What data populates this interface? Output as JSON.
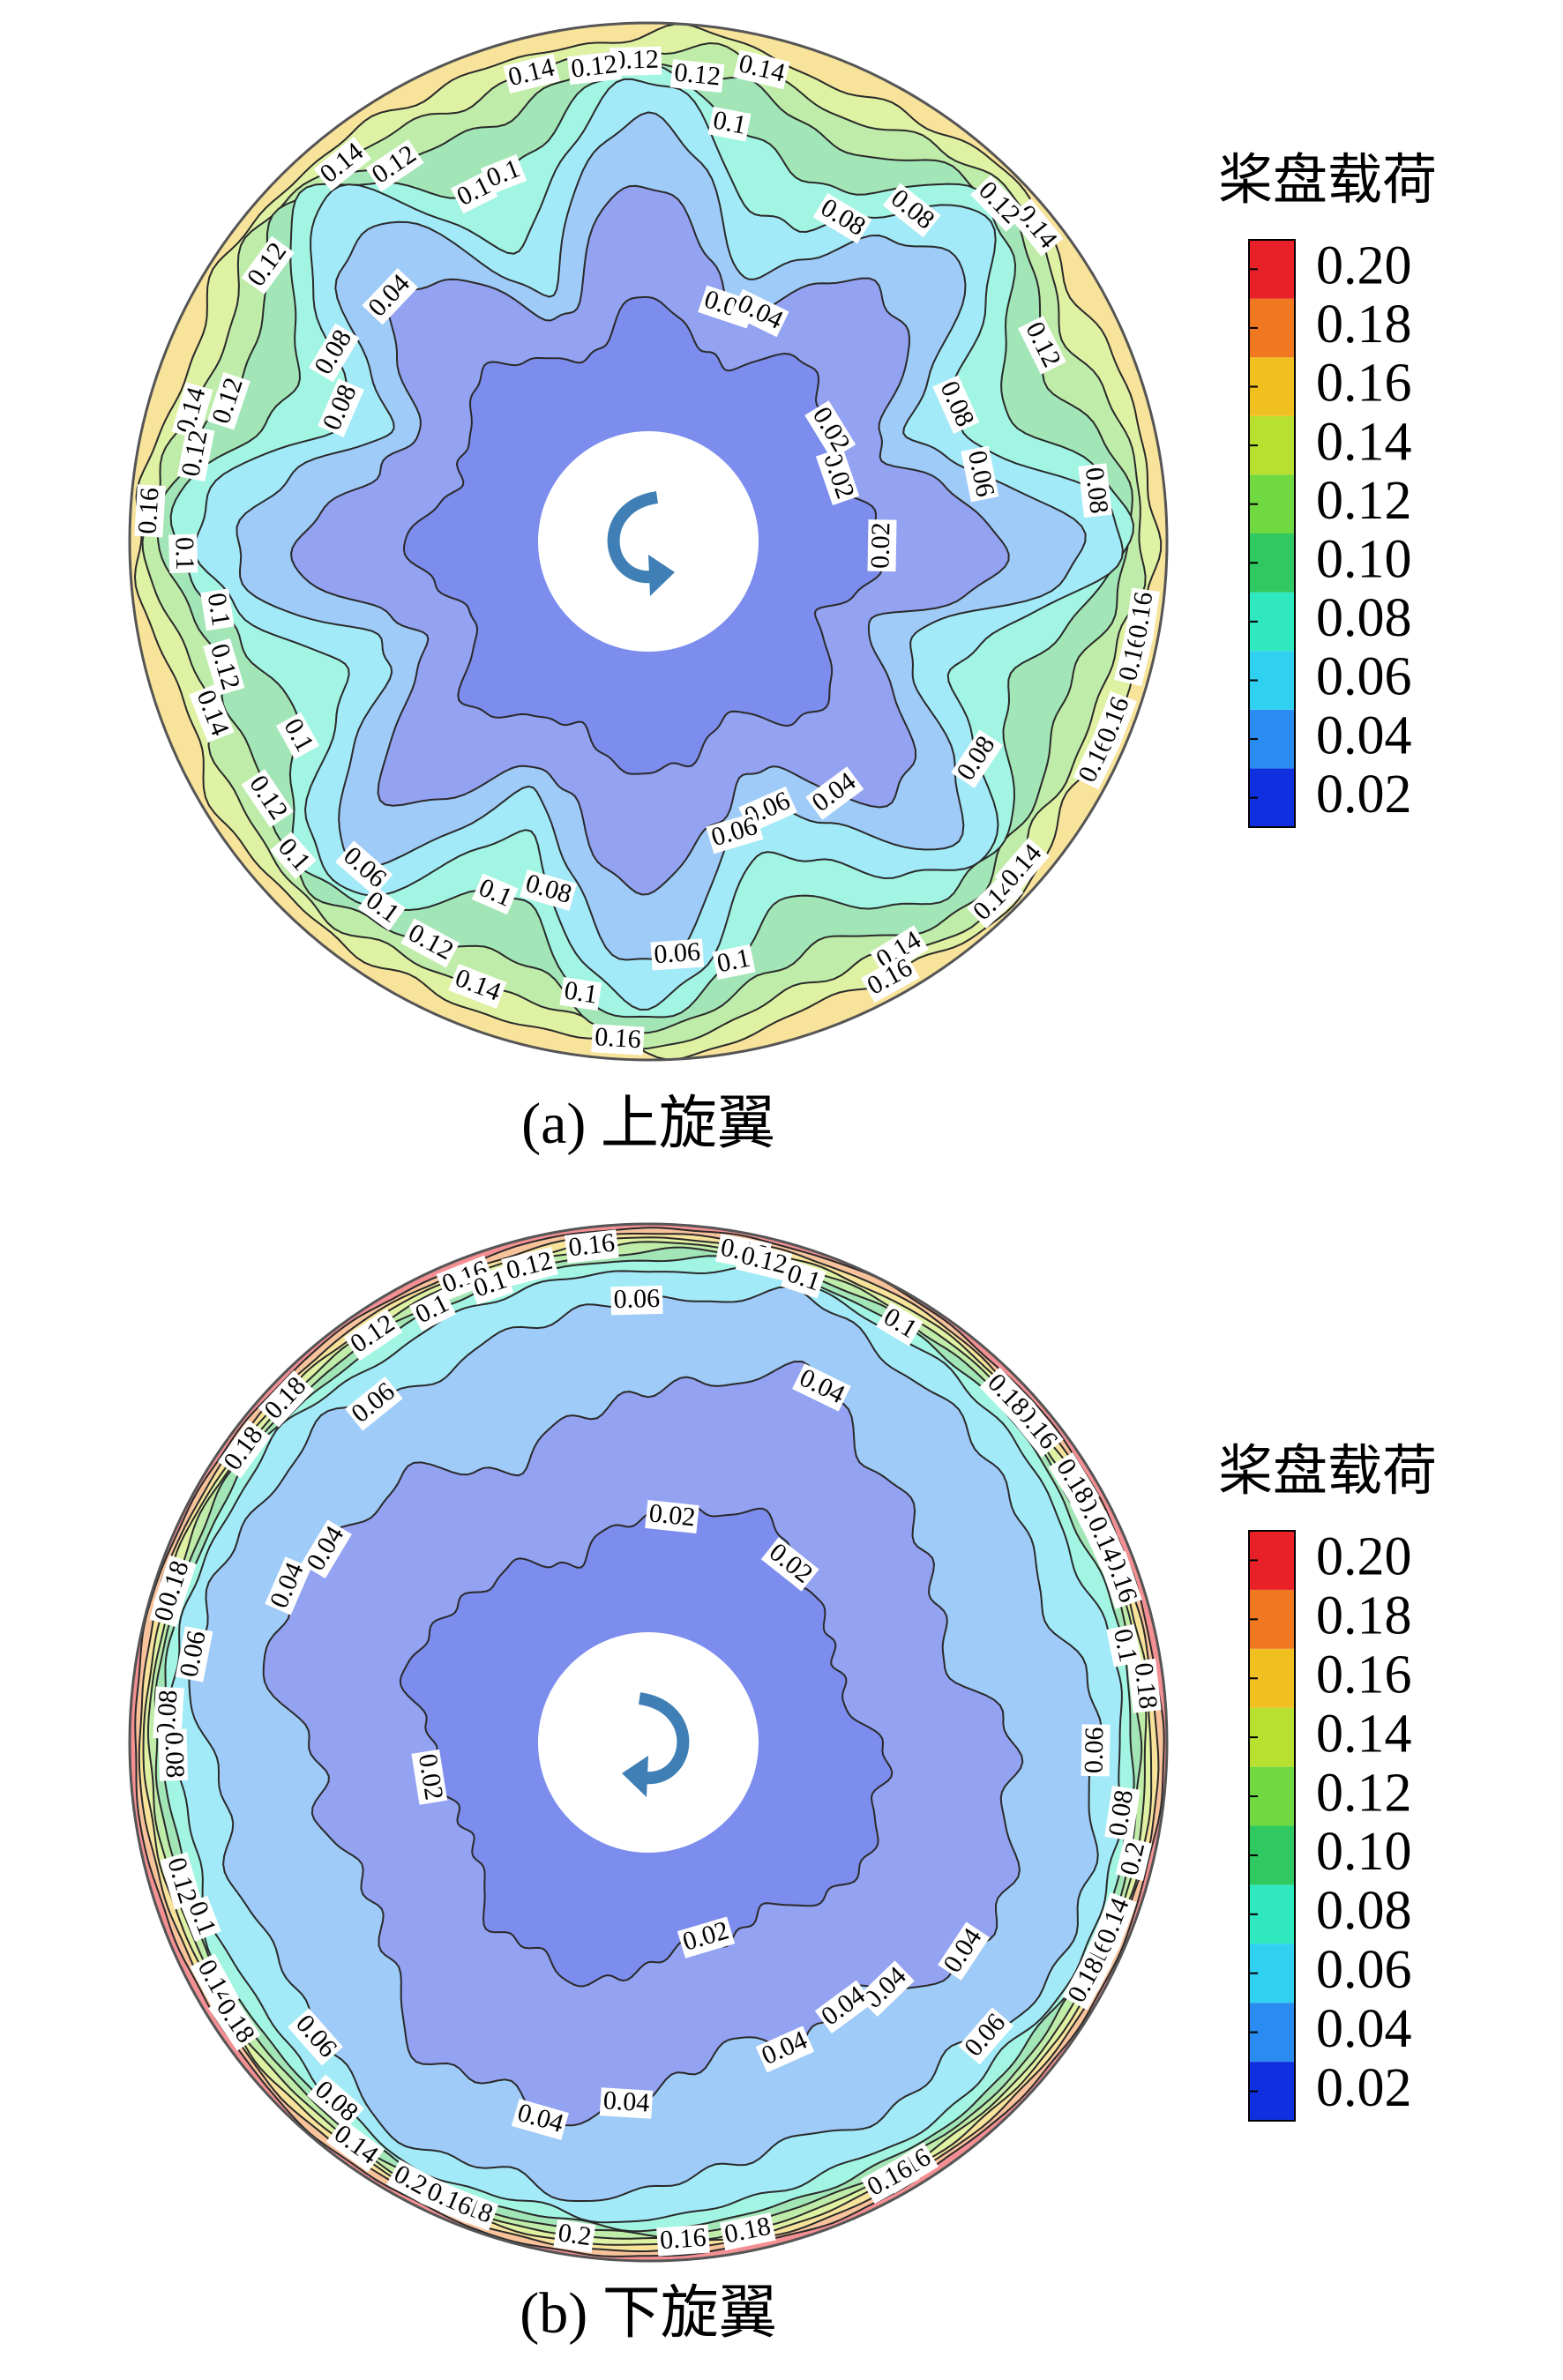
{
  "chart_data": [
    {
      "type": "contour",
      "caption": "(a) 上旋翼",
      "colorbar_title": "桨盘载荷",
      "levels": [
        0.02,
        0.04,
        0.06,
        0.08,
        0.1,
        0.12,
        0.14,
        0.16,
        0.18,
        0.2
      ],
      "colorbar_ticks": [
        {
          "value": 0.02,
          "label": "0.02"
        },
        {
          "value": 0.04,
          "label": "0.04"
        },
        {
          "value": 0.06,
          "label": "0.06"
        },
        {
          "value": 0.08,
          "label": "0.08"
        },
        {
          "value": 0.1,
          "label": "0.10"
        },
        {
          "value": 0.12,
          "label": "0.12"
        },
        {
          "value": 0.14,
          "label": "0.14"
        },
        {
          "value": 0.16,
          "label": "0.16"
        },
        {
          "value": 0.18,
          "label": "0.18"
        },
        {
          "value": 0.2,
          "label": "0.20"
        }
      ],
      "colors": [
        "#1030e0",
        "#2a8cf0",
        "#30d0f0",
        "#30e8c0",
        "#30c860",
        "#70d840",
        "#b8e030",
        "#f0c020",
        "#f07820",
        "#e82028"
      ],
      "contour_labels": [
        0.1,
        0.14,
        0.14,
        0.12,
        0.14,
        0.1,
        0.16,
        0.12,
        0.08,
        0.1,
        0.12,
        0.08,
        0.06,
        0.12,
        0.14,
        0.16,
        0.14,
        0.1,
        0.12,
        0.16,
        0.1,
        0.04,
        0.06,
        0.08,
        0.02,
        0.12,
        0.14,
        0.08,
        0.1,
        0.08,
        0.06,
        0.04,
        0.02,
        0.1,
        0.12,
        0.04,
        0.12,
        0.02,
        0.08,
        0.1,
        0.16,
        0.14,
        0.04,
        0.06,
        0.08,
        0.06,
        0.1,
        0.12,
        0.14,
        0.1,
        0.12,
        0.16,
        0.14,
        0.16,
        0.12,
        0.14,
        0.16,
        0.12,
        0.08,
        0.1
      ]
    },
    {
      "type": "contour",
      "caption": "(b) 下旋翼",
      "colorbar_title": "桨盘载荷",
      "levels": [
        0.02,
        0.04,
        0.06,
        0.08,
        0.1,
        0.12,
        0.14,
        0.16,
        0.18,
        0.2
      ],
      "colorbar_ticks": [
        {
          "value": 0.02,
          "label": "0.02"
        },
        {
          "value": 0.04,
          "label": "0.04"
        },
        {
          "value": 0.06,
          "label": "0.06"
        },
        {
          "value": 0.08,
          "label": "0.08"
        },
        {
          "value": 0.1,
          "label": "0.10"
        },
        {
          "value": 0.12,
          "label": "0.12"
        },
        {
          "value": 0.14,
          "label": "0.14"
        },
        {
          "value": 0.16,
          "label": "0.16"
        },
        {
          "value": 0.18,
          "label": "0.18"
        },
        {
          "value": 0.2,
          "label": "0.20"
        }
      ],
      "colors": [
        "#1030e0",
        "#2a8cf0",
        "#30d0f0",
        "#30e8c0",
        "#30c860",
        "#70d840",
        "#b8e030",
        "#f0c020",
        "#f07820",
        "#e82028"
      ],
      "contour_labels": [
        0.16,
        0.16,
        0.2,
        0.14,
        0.18,
        0.16,
        0.16,
        0.12,
        0.1,
        0.18,
        0.18,
        0.18,
        0.08,
        0.06,
        0.04,
        0.08,
        0.16,
        0.2,
        0.12,
        0.2,
        0.14,
        0.1,
        0.04,
        0.04,
        0.16,
        0.2,
        0.12,
        0.04,
        0.02,
        0.02,
        0.16,
        0.18,
        0.06,
        0.06,
        0.02,
        0.04,
        0.06,
        0.18,
        0.04,
        0.1,
        0.14,
        0.1,
        0.04,
        0.02,
        0.04,
        0.1,
        0.14,
        0.16,
        0.06,
        0.08,
        0.18,
        0.04,
        0.06,
        0.08,
        0.18,
        0.12,
        0.16,
        0.18,
        0.14,
        0.16,
        0.1,
        0.18
      ]
    }
  ]
}
